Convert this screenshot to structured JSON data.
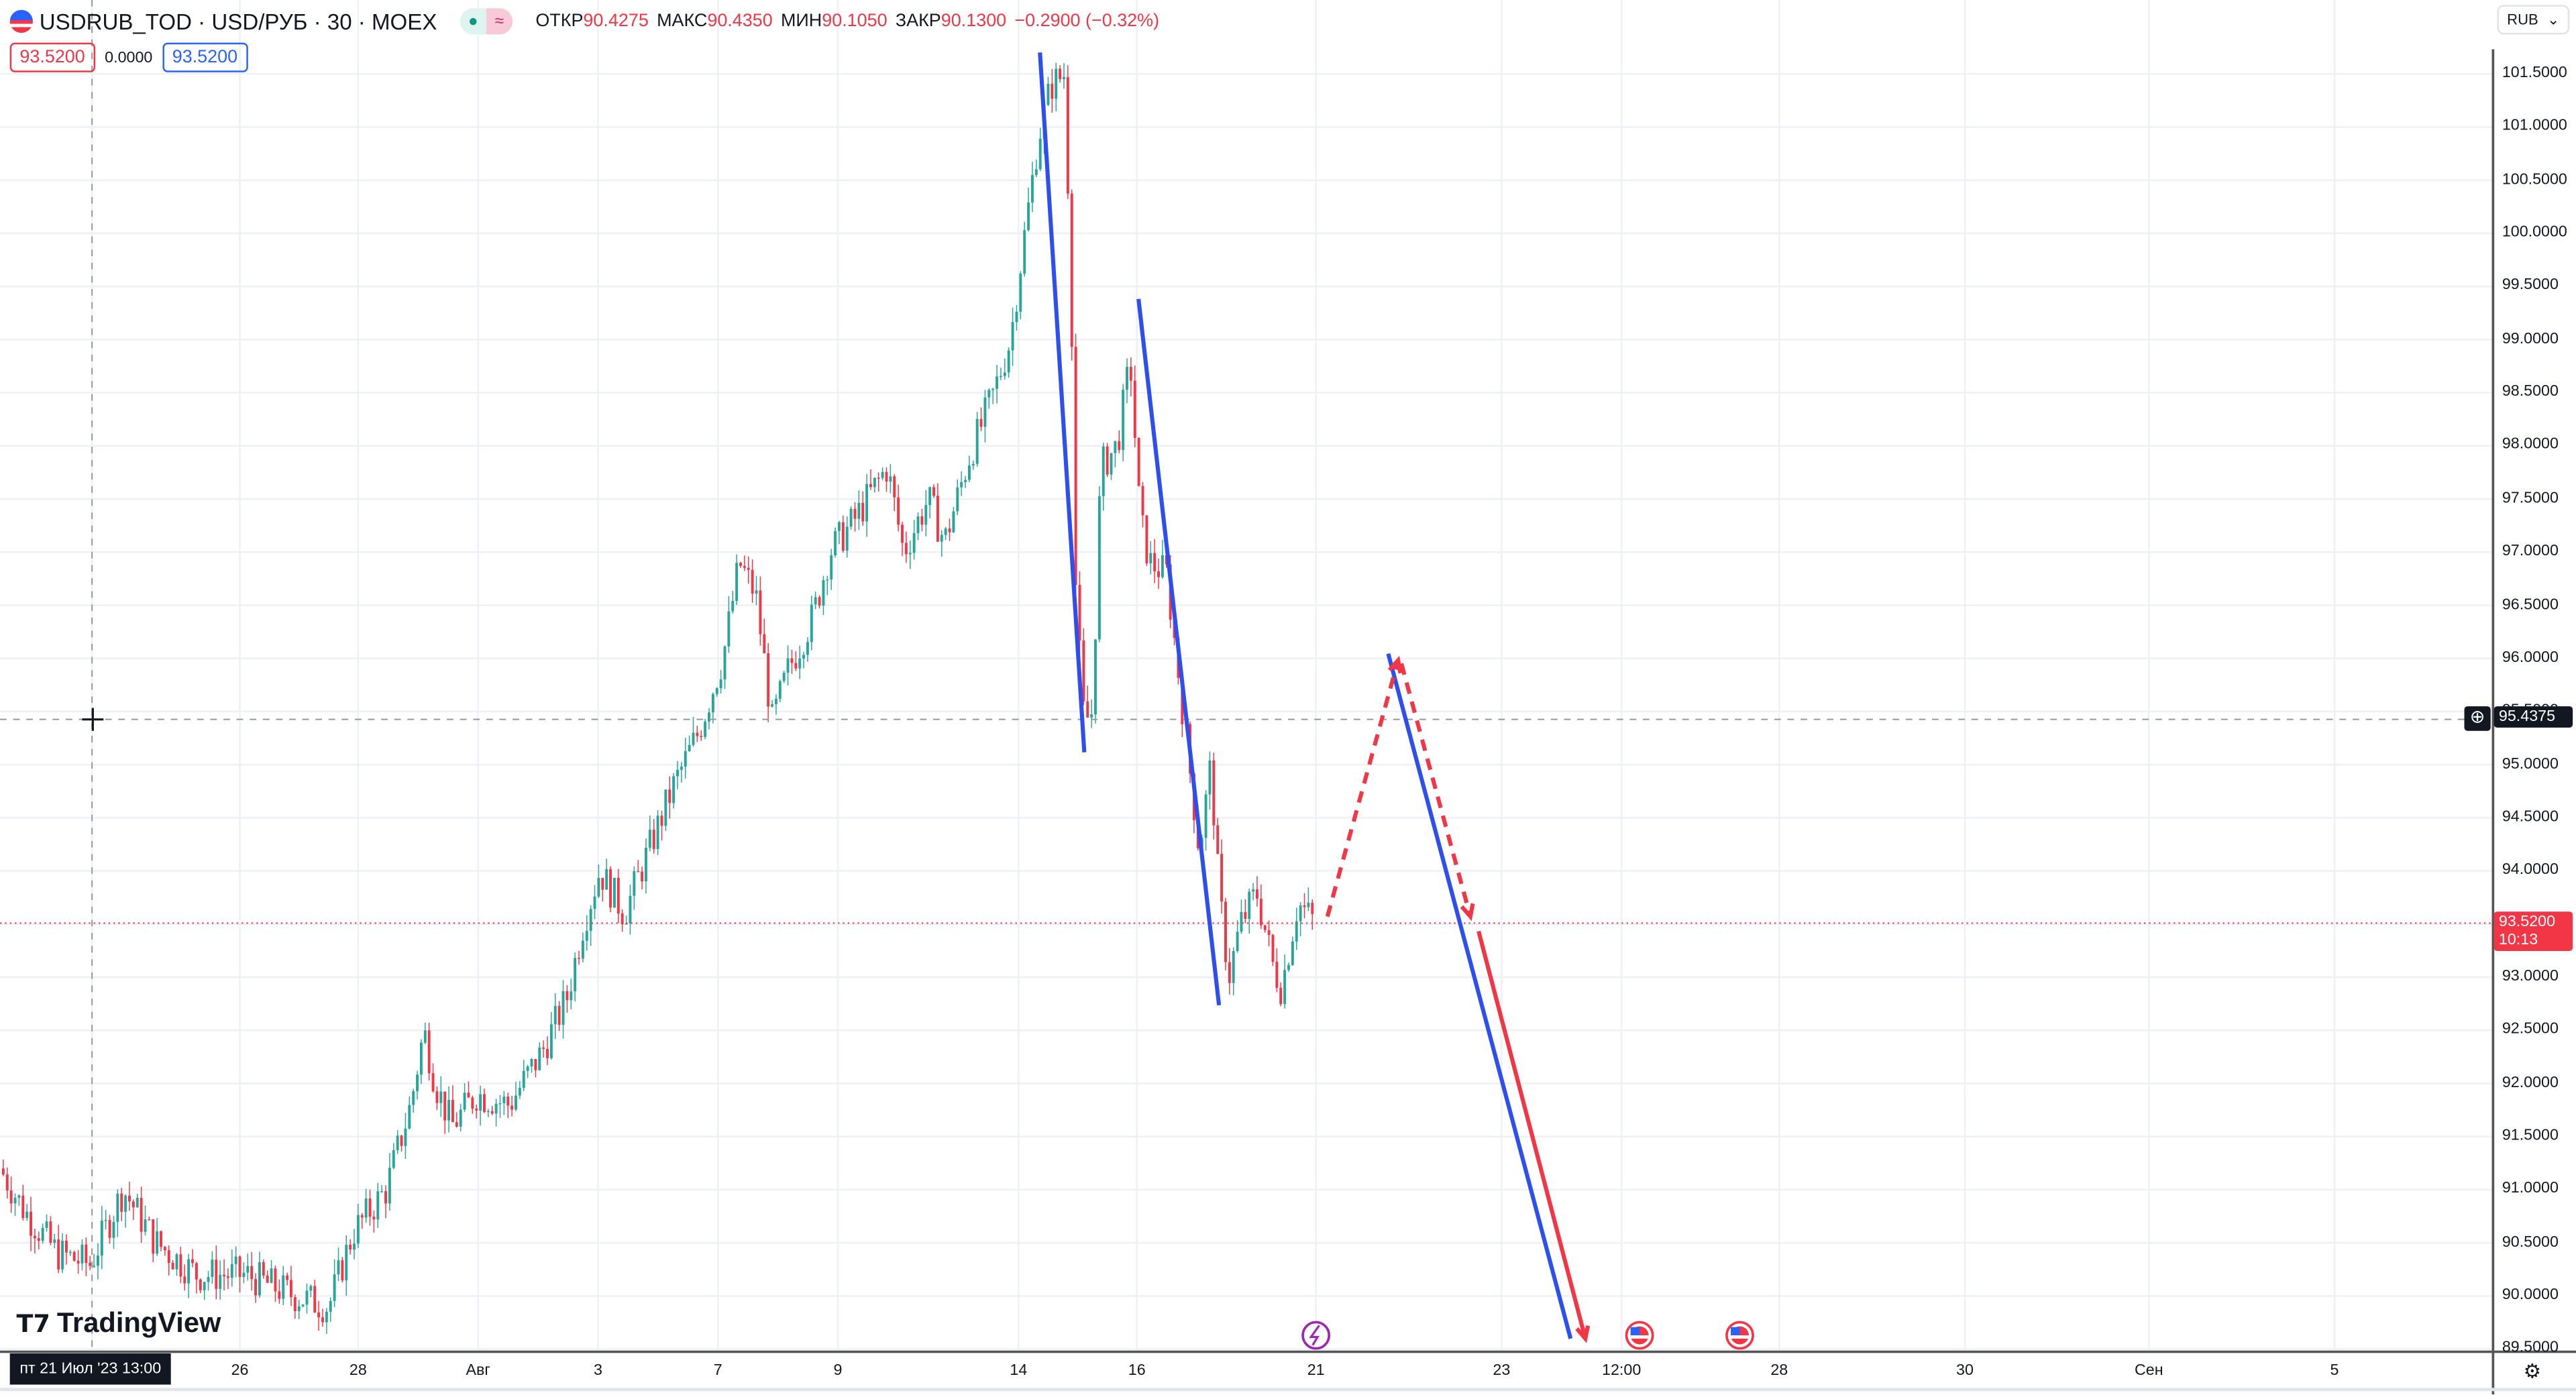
{
  "header": {
    "symbol": "USDRUB_TOD",
    "pair": "USD/РУБ",
    "interval": "30",
    "exchange": "MOEX",
    "ohlc": [
      {
        "k": "ОТКР",
        "v": "90.4275"
      },
      {
        "k": "МАКС",
        "v": "90.4350"
      },
      {
        "k": "МИН",
        "v": "90.1050"
      },
      {
        "k": "ЗАКР",
        "v": "90.1300"
      }
    ],
    "change": "−0.2900 (−0.32%)"
  },
  "quote": {
    "sell": "93.5200",
    "spread": "0.0000",
    "buy": "93.5200"
  },
  "currency_button": "RUB",
  "logo": "TradingView",
  "price_axis": [
    "101.5000",
    "101.0000",
    "100.5000",
    "100.0000",
    "99.5000",
    "99.0000",
    "98.5000",
    "98.0000",
    "97.5000",
    "97.0000",
    "96.5000",
    "96.0000",
    "95.5000",
    "95.0000",
    "94.5000",
    "94.0000",
    "93.5000",
    "93.0000",
    "92.5000",
    "92.0000",
    "91.5000",
    "91.0000",
    "90.5000",
    "90.0000",
    "89.5000"
  ],
  "crosshair": {
    "price": "95.4375",
    "time": "пт 21 Июл '23  13:00"
  },
  "last_price": {
    "price": "93.5200",
    "countdown": "10:13"
  },
  "time_axis": [
    "26",
    "28",
    "Авг",
    "3",
    "7",
    "9",
    "14",
    "16",
    "21",
    "23",
    "12:00",
    "28",
    "30",
    "Сен",
    "5"
  ],
  "colors": {
    "up": "#26a69a",
    "down": "#f23645",
    "drawing_blue": "#2d4ff0",
    "drawing_red": "#f23645",
    "grid": "#edf1f5"
  },
  "icons": [
    "us-flag-icon",
    "lightning-event-icon",
    "us-flag-event-icon",
    "plus-circle-icon",
    "settings-icon",
    "chevron-down-icon"
  ],
  "chart_data": {
    "type": "candlestick",
    "ylim": [
      89.5,
      101.7
    ],
    "closes": [
      91.2,
      90.8,
      90.4,
      90.3,
      91.0,
      90.5,
      90.2,
      90.2,
      90.0,
      89.9,
      90.6,
      91.0,
      91.8,
      92.5,
      92.0,
      91.6,
      91.9,
      91.8,
      92.3,
      92.8,
      93.5,
      94.0,
      93.6,
      94.2,
      94.8,
      95.3,
      96.0,
      96.9,
      96.6,
      95.4,
      95.9,
      96.4,
      97.0,
      97.3,
      97.8,
      97.0,
      97.5,
      97.1,
      97.9,
      98.5,
      99.0,
      99.8,
      100.9,
      101.4,
      101.5,
      99.5,
      96.5,
      95.4,
      95.5,
      97.8,
      98.0,
      98.8,
      97.3,
      96.9,
      96.8,
      95.5,
      94.2,
      95.0,
      93.8,
      93.0,
      93.5,
      93.8,
      93.1,
      92.9,
      93.7,
      93.52
    ]
  }
}
